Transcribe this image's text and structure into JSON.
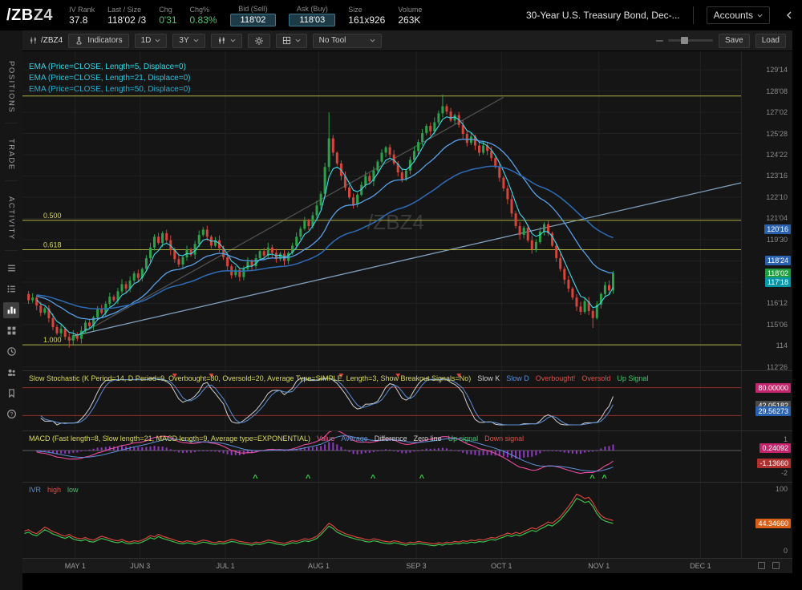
{
  "header": {
    "symbol_root": "/ZB",
    "symbol_suffix": "Z4",
    "iv_rank": {
      "label": "IV Rank",
      "value": "37.8"
    },
    "last_size": {
      "label": "Last / Size",
      "value": "118'02 /3"
    },
    "chg": {
      "label": "Chg",
      "value": "0'31"
    },
    "chg_pct": {
      "label": "Chg%",
      "value": "0.83%"
    },
    "bid": {
      "label": "Bid (Sell)",
      "value": "118'02"
    },
    "ask": {
      "label": "Ask (Buy)",
      "value": "118'03"
    },
    "size": {
      "label": "Size",
      "value": "161x926"
    },
    "volume": {
      "label": "Volume",
      "value": "263K"
    },
    "instrument": "30-Year U.S. Treasury Bond, Dec-...",
    "accounts": "Accounts"
  },
  "sidebar": {
    "tabs": [
      "POSITIONS",
      "TRADE",
      "ACTIVITY"
    ],
    "icons": [
      "orders-icon",
      "watchlist-icon",
      "chart-icon",
      "apps-icon",
      "history-icon",
      "community-icon",
      "bookmark-icon",
      "help-icon"
    ]
  },
  "toolbar": {
    "symbol": "/ZBZ4",
    "indicators": "Indicators",
    "interval": "1D",
    "range": "3Y",
    "tool": "No Tool",
    "save": "Save",
    "load": "Load"
  },
  "chart": {
    "watermark": "/ZBZ4",
    "ema_labels": [
      "EMA (Price=CLOSE, Length=5, Displace=0)",
      "EMA (Price=CLOSE, Length=21, Displace=0)",
      "EMA (Price=CLOSE, Length=50, Displace=0)"
    ],
    "slots": 177,
    "pmax": 130.47,
    "pmin": 112.63,
    "y_ticks": [
      {
        "label": "129'14",
        "price": 129.4375
      },
      {
        "label": "128'08",
        "price": 128.25
      },
      {
        "label": "127'02",
        "price": 127.0625
      },
      {
        "label": "125'28",
        "price": 125.875
      },
      {
        "label": "124'22",
        "price": 124.6875
      },
      {
        "label": "123'16",
        "price": 123.5
      },
      {
        "label": "122'10",
        "price": 122.3125
      },
      {
        "label": "121'04",
        "price": 121.125
      },
      {
        "label": "119'30",
        "price": 119.9375
      },
      {
        "label": "118'24",
        "price": 118.75
      },
      {
        "label": "117'18",
        "price": 117.5625
      },
      {
        "label": "116'12",
        "price": 116.375
      },
      {
        "label": "115'06",
        "price": 115.1875
      },
      {
        "label": "114",
        "price": 114.0
      },
      {
        "label": "112'26",
        "price": 112.8125
      }
    ],
    "price_markers": [
      {
        "label": "120'16",
        "price": 120.5,
        "bg": "#2a62b0"
      },
      {
        "label": "118'24",
        "price": 118.75,
        "bg": "#2a62b0"
      },
      {
        "label": "118'02",
        "price": 118.0625,
        "bg": "#1f9d3f"
      },
      {
        "label": "117'18",
        "price": 117.5625,
        "bg": "#0097a7"
      }
    ],
    "fib": {
      "high": 127.97,
      "low": 114.06,
      "levels": [
        {
          "label": "0.000",
          "f": 0,
          "show": false
        },
        {
          "label": "0.500",
          "f": 0.5
        },
        {
          "label": "0.618",
          "f": 0.618
        },
        {
          "label": "1.000",
          "f": 1
        }
      ]
    },
    "trendlines": [
      {
        "i1": 11,
        "p1": 114.3,
        "i2": 118,
        "p2": 127.9,
        "color": "#4f4f4f"
      },
      {
        "i1": 12,
        "p1": 114.55,
        "i2": 181,
        "p2": 123.35,
        "color": "#7f9db9"
      }
    ],
    "months": [
      {
        "label": "MAY 1",
        "i": 13
      },
      {
        "label": "JUN 3",
        "i": 29
      },
      {
        "label": "JUL 1",
        "i": 50
      },
      {
        "label": "AUG 1",
        "i": 73
      },
      {
        "label": "SEP 3",
        "i": 97
      },
      {
        "label": "OCT 1",
        "i": 118
      },
      {
        "label": "NOV 1",
        "i": 142
      },
      {
        "label": "DEC 1",
        "i": 167
      }
    ],
    "closes": [
      116.9,
      116.55,
      116.7,
      116.25,
      115.85,
      116.1,
      115.55,
      115.05,
      114.7,
      114.95,
      114.5,
      114.3,
      114.6,
      114.4,
      114.85,
      115.3,
      115.1,
      115.6,
      116.05,
      115.85,
      116.35,
      116.75,
      116.55,
      117.05,
      117.45,
      117.2,
      117.65,
      118.05,
      117.8,
      118.3,
      118.9,
      119.5,
      120.1,
      119.75,
      120.3,
      119.9,
      119.35,
      118.85,
      118.55,
      118.95,
      119.4,
      119.1,
      119.7,
      120.2,
      120.5,
      120.1,
      119.6,
      119.9,
      119.45,
      118.95,
      118.45,
      117.95,
      118.25,
      117.85,
      118.3,
      118.7,
      118.45,
      118.9,
      119.3,
      119.05,
      119.5,
      119.2,
      118.85,
      119.15,
      118.75,
      119.2,
      119.6,
      120.1,
      120.55,
      121.0,
      120.7,
      121.3,
      121.85,
      122.5,
      124.0,
      125.6,
      124.8,
      124.2,
      123.5,
      122.85,
      122.3,
      121.9,
      122.45,
      123.0,
      123.5,
      123.2,
      123.8,
      124.3,
      124.8,
      125.1,
      124.7,
      124.2,
      123.7,
      123.3,
      123.8,
      124.4,
      124.9,
      125.4,
      125.9,
      126.3,
      126.0,
      126.5,
      127.0,
      127.4,
      127.1,
      126.6,
      126.9,
      126.35,
      125.85,
      125.35,
      125.7,
      125.2,
      124.8,
      125.2,
      124.9,
      124.5,
      124.0,
      123.4,
      122.8,
      122.2,
      121.4,
      120.7,
      120.2,
      120.6,
      119.9,
      119.4,
      119.8,
      120.4,
      120.8,
      120.3,
      119.6,
      118.9,
      118.3,
      117.7,
      117.2,
      116.7,
      116.2,
      115.9,
      116.5,
      115.95,
      115.55,
      116.3,
      116.9,
      117.4,
      117.1,
      118.06
    ],
    "wick_high": {
      "75": 127.05,
      "103": 128.06
    },
    "wick_low": {
      "11": 113.9,
      "140": 115.0
    }
  },
  "stoch": {
    "label": "Slow Stochastic (K Period=14, D Period=9, Overbought=80, Oversold=20, Average Type=SIMPLE, Length=3, Show Breakout Signals=No)",
    "legend": [
      {
        "text": "Slow K",
        "color": "#cfcfcf"
      },
      {
        "text": "Slow D",
        "color": "#5c8fd6"
      },
      {
        "text": "Overbought!",
        "color": "#e05048"
      },
      {
        "text": "Oversold",
        "color": "#e05048"
      },
      {
        "text": "Up Signal",
        "color": "#45c16f"
      }
    ],
    "overbought": 80,
    "oversold": 20,
    "markers": [
      {
        "label": "80.00000",
        "value": 80,
        "bg": "#c2256b"
      },
      {
        "label": "42.05182",
        "value": 42.05,
        "bg": "#4a4a4a"
      },
      {
        "label": "29.56273",
        "value": 29.56,
        "bg": "#2a62b0"
      }
    ]
  },
  "macd": {
    "label": "MACD (Fast length=8, Slow length=21, MACD length=9, Average type=EXPONENTIAL)",
    "legend": [
      {
        "text": "Value",
        "color": "#e85c8a"
      },
      {
        "text": "Average",
        "color": "#5c8fd6"
      },
      {
        "text": "Difference",
        "color": "#cfcfcf"
      },
      {
        "text": "Zero line",
        "color": "#cfcfcf"
      },
      {
        "text": "Up signal",
        "color": "#45c16f"
      },
      {
        "text": "Down signal",
        "color": "#e05048"
      }
    ],
    "range": [
      -2.6,
      1.45
    ],
    "ticks": [
      {
        "label": "1",
        "value": 1
      },
      {
        "label": "-2",
        "value": -2
      }
    ],
    "markers": [
      {
        "label": "0.24092",
        "value": 0.24,
        "bg": "#c2256b"
      },
      {
        "label": "-1.13660",
        "value": -1.137,
        "bg": "#b03030"
      }
    ],
    "up_signals": [
      57,
      70,
      86,
      98,
      140,
      143
    ]
  },
  "ivr": {
    "label": "IVR",
    "legend": [
      {
        "text": "high",
        "color": "#e05048"
      },
      {
        "text": "low",
        "color": "#45c16f"
      }
    ],
    "ticks": [
      {
        "label": "100",
        "value": 100
      },
      {
        "label": "0",
        "value": 0
      }
    ],
    "marker": {
      "label": "44.34660",
      "value": 44.35,
      "bg": "#d95f17"
    },
    "values": [
      28,
      30,
      26,
      24,
      29,
      34,
      31,
      27,
      25,
      22,
      20,
      23,
      19,
      17,
      16,
      18,
      15,
      14,
      17,
      20,
      18,
      16,
      14,
      13,
      15,
      12,
      11,
      13,
      12,
      14,
      17,
      21,
      19,
      23,
      20,
      18,
      16,
      14,
      12,
      11,
      13,
      12,
      10,
      12,
      14,
      13,
      11,
      10,
      12,
      11,
      13,
      15,
      14,
      12,
      11,
      10,
      9,
      11,
      10,
      12,
      14,
      13,
      11,
      10,
      9,
      11,
      13,
      12,
      14,
      16,
      15,
      17,
      20,
      26,
      33,
      40,
      36,
      30,
      27,
      24,
      22,
      20,
      18,
      17,
      15,
      14,
      16,
      15,
      13,
      12,
      11,
      13,
      12,
      10,
      9,
      11,
      10,
      12,
      11,
      10,
      9,
      8,
      10,
      9,
      11,
      10,
      12,
      11,
      13,
      12,
      14,
      13,
      15,
      14,
      16,
      18,
      17,
      20,
      22,
      25,
      23,
      26,
      24,
      27,
      30,
      33,
      31,
      35,
      38,
      42,
      40,
      45,
      50,
      58,
      66,
      75,
      85,
      82,
      78,
      80,
      72,
      60,
      52,
      48,
      46,
      44.3
    ]
  }
}
